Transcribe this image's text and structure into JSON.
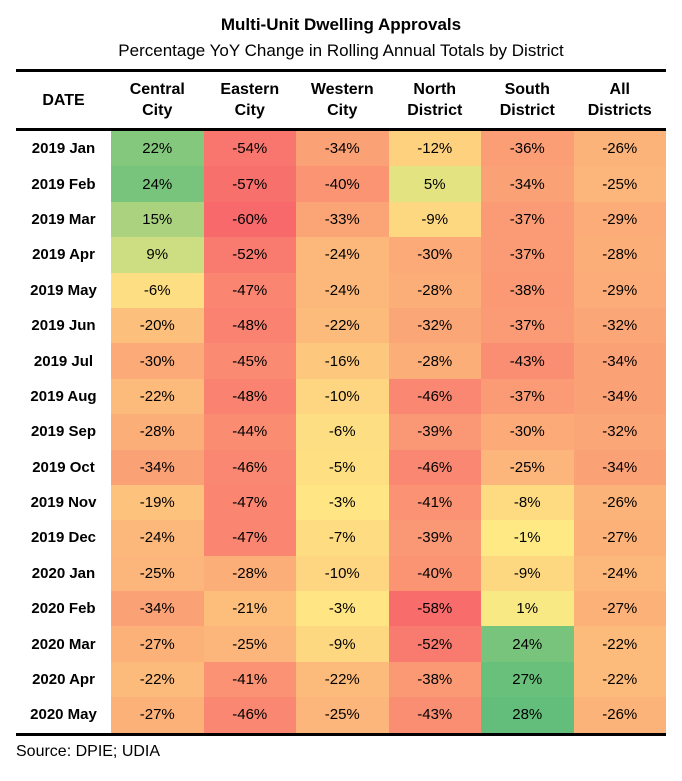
{
  "chart_data": {
    "type": "heatmap",
    "title": "Multi-Unit Dwelling Approvals",
    "subtitle": "Percentage YoY Change in Rolling Annual Totals by District",
    "source": "Source: DPIE; UDIA",
    "value_format": "percent",
    "legend": "none",
    "columns": [
      "DATE",
      "Central City",
      "Eastern City",
      "Western City",
      "North District",
      "South District",
      "All Districts"
    ],
    "rows": [
      {
        "date": "2019 Jan",
        "values": [
          22,
          -54,
          -34,
          -12,
          -36,
          -26
        ]
      },
      {
        "date": "2019 Feb",
        "values": [
          24,
          -57,
          -40,
          5,
          -34,
          -25
        ]
      },
      {
        "date": "2019 Mar",
        "values": [
          15,
          -60,
          -33,
          -9,
          -37,
          -29
        ]
      },
      {
        "date": "2019 Apr",
        "values": [
          9,
          -52,
          -24,
          -30,
          -37,
          -28
        ]
      },
      {
        "date": "2019 May",
        "values": [
          -6,
          -47,
          -24,
          -28,
          -38,
          -29
        ]
      },
      {
        "date": "2019 Jun",
        "values": [
          -20,
          -48,
          -22,
          -32,
          -37,
          -32
        ]
      },
      {
        "date": "2019 Jul",
        "values": [
          -30,
          -45,
          -16,
          -28,
          -43,
          -34
        ]
      },
      {
        "date": "2019 Aug",
        "values": [
          -22,
          -48,
          -10,
          -46,
          -37,
          -34
        ]
      },
      {
        "date": "2019 Sep",
        "values": [
          -28,
          -44,
          -6,
          -39,
          -30,
          -32
        ]
      },
      {
        "date": "2019 Oct",
        "values": [
          -34,
          -46,
          -5,
          -46,
          -25,
          -34
        ]
      },
      {
        "date": "2019 Nov",
        "values": [
          -19,
          -47,
          -3,
          -41,
          -8,
          -26
        ]
      },
      {
        "date": "2019 Dec",
        "values": [
          -24,
          -47,
          -7,
          -39,
          -1,
          -27
        ]
      },
      {
        "date": "2020 Jan",
        "values": [
          -25,
          -28,
          -10,
          -40,
          -9,
          -24
        ]
      },
      {
        "date": "2020 Feb",
        "values": [
          -34,
          -21,
          -3,
          -58,
          1,
          -27
        ]
      },
      {
        "date": "2020 Mar",
        "values": [
          -27,
          -25,
          -9,
          -52,
          24,
          -22
        ]
      },
      {
        "date": "2020 Apr",
        "values": [
          -22,
          -41,
          -22,
          -38,
          27,
          -22
        ]
      },
      {
        "date": "2020 May",
        "values": [
          -27,
          -46,
          -25,
          -43,
          28,
          -26
        ]
      }
    ],
    "color_scale": {
      "min_value": -60,
      "mid_value": 0,
      "max_value": 28,
      "min_color": "#F8696B",
      "mid_color": "#FFEB84",
      "max_color": "#63BE7B"
    },
    "text_color": "#000000",
    "rule_color": "#000000"
  }
}
